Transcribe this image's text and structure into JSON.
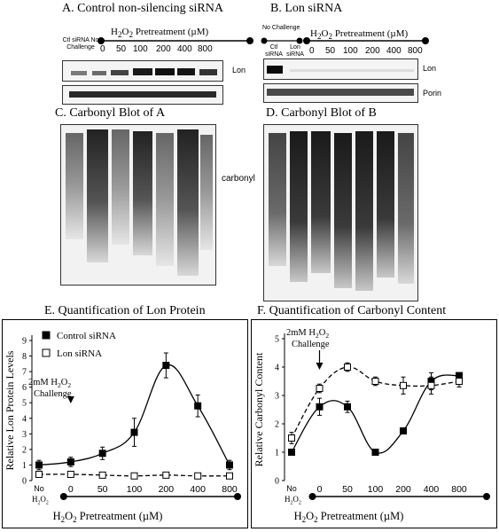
{
  "panels": {
    "a": {
      "title": "A.  Control non-silencing siRNA",
      "ctl_label": "Ctl siRNA No Challenge",
      "treatment": "Pretreatment (µM)",
      "concentrations": [
        "0",
        "50",
        "100",
        "200",
        "400",
        "800"
      ]
    },
    "b": {
      "title": "B.  Lon siRNA",
      "no_challenge": "No Challenge",
      "ctl_label": "Ctl siRNA",
      "lon_label": "Lon siRNA",
      "treatment": "Pretreatment (µM)",
      "concentrations": [
        "0",
        "50",
        "100",
        "200",
        "400",
        "800"
      ]
    },
    "c": {
      "title": "C.  Carbonyl Blot of A"
    },
    "d": {
      "title": "D.  Carbonyl Blot of B"
    },
    "e": {
      "title": "E.  Quantification of Lon Protein"
    },
    "f": {
      "title": "F.  Quantification of Carbonyl Content"
    }
  },
  "blot_labels": {
    "lon": "Lon",
    "porin": "Porin",
    "carbonyl": "carbonyl"
  },
  "chart_data": [
    {
      "type": "line",
      "title": "E.  Quantification of Lon Protein",
      "xlabel": "H2O2 Pretreatment (µM)",
      "ylabel": "Relative Lon Protein Levels",
      "x_categories": [
        "No H2O2",
        "0",
        "50",
        "100",
        "200",
        "400",
        "800"
      ],
      "ylim": [
        0,
        9
      ],
      "yticks": [
        0,
        1,
        2,
        3,
        4,
        5,
        6,
        7,
        8,
        9
      ],
      "annotation": "2mM H2O2 Challenge",
      "legend": "top-left",
      "series": [
        {
          "name": "Control siRNA",
          "marker": "filled-square",
          "line": "solid",
          "values": [
            1.0,
            1.2,
            1.75,
            3.1,
            7.4,
            4.8,
            1.0
          ],
          "errors": [
            0.3,
            0.3,
            0.4,
            0.9,
            0.8,
            0.7,
            0.3
          ]
        },
        {
          "name": "Lon siRNA",
          "marker": "open-square",
          "line": "dashed",
          "values": [
            0.4,
            0.4,
            0.35,
            0.3,
            0.35,
            0.3,
            0.3
          ],
          "errors": [
            0.05,
            0.05,
            0.05,
            0.05,
            0.05,
            0.05,
            0.05
          ]
        }
      ]
    },
    {
      "type": "line",
      "title": "F.  Quantification of Carbonyl Content",
      "xlabel": "H2O2 Pretreatment (µM)",
      "ylabel": "Relative Carbonyl Content",
      "x_categories": [
        "No H2O2",
        "0",
        "50",
        "100",
        "200",
        "400",
        "800"
      ],
      "ylim": [
        0,
        5
      ],
      "yticks": [
        0,
        1,
        2,
        3,
        4,
        5
      ],
      "annotation": "2mM H2O2 Challenge",
      "series": [
        {
          "name": "Control siRNA",
          "marker": "filled-square",
          "line": "solid",
          "values": [
            1.0,
            2.6,
            2.6,
            1.0,
            1.75,
            3.5,
            3.7
          ],
          "errors": [
            0.1,
            0.3,
            0.2,
            0.1,
            0.1,
            0.3,
            0.1
          ]
        },
        {
          "name": "Lon siRNA",
          "marker": "open-square",
          "line": "dashed",
          "values": [
            1.5,
            3.25,
            4.0,
            3.5,
            3.35,
            3.35,
            3.5
          ],
          "errors": [
            0.2,
            0.15,
            0.15,
            0.15,
            0.3,
            0.3,
            0.2
          ]
        }
      ]
    }
  ],
  "h2o2_parts": {
    "pre": "H",
    "sub1": "2",
    "mid": "O",
    "sub2": "2"
  },
  "no_h2o2_label": "No",
  "colors": {
    "ink": "#000000",
    "blot_dark": "#1a1a1a",
    "blot_bg": "#f2f2f2"
  }
}
